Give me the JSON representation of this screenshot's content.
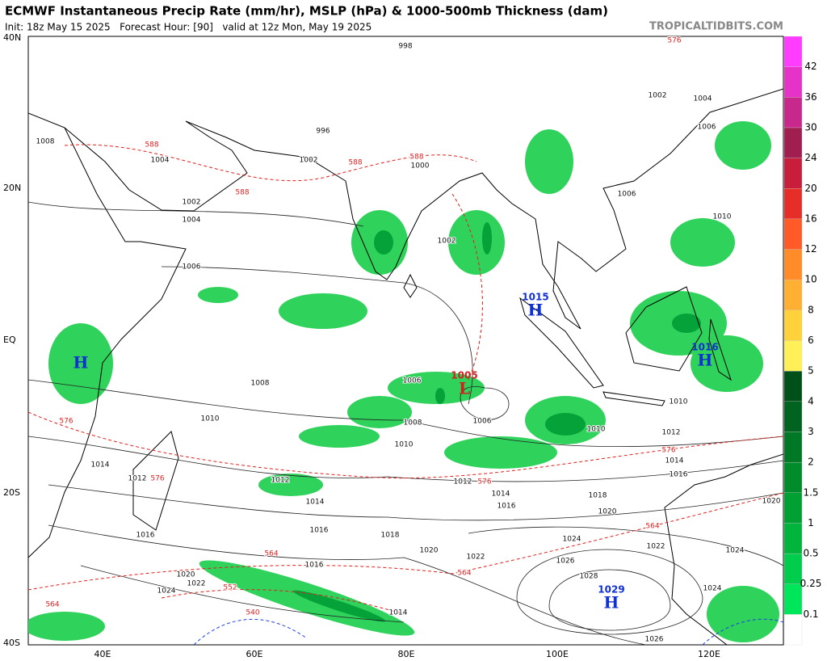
{
  "header": {
    "title": "ECMWF Instantaneous Precip Rate (mm/hr), MSLP (hPa) & 1000-500mb Thickness (dam)",
    "subtitle": "Init: 18z May 15 2025   Forecast Hour: [90]   valid at 12z Mon, May 19 2025",
    "source": "TROPICALTIDBITS.COM"
  },
  "map": {
    "lat_labels": [
      "40N",
      "20N",
      "EQ",
      "20S",
      "40S"
    ],
    "lon_labels": [
      "40E",
      "60E",
      "80E",
      "100E",
      "120E"
    ],
    "centers": [
      {
        "letter": "H",
        "value": "1015"
      },
      {
        "letter": "H",
        "value": "1016"
      },
      {
        "letter": "L",
        "value": "1005"
      },
      {
        "letter": "H",
        "value": "1029"
      },
      {
        "letter": "H"
      }
    ],
    "isobar_labels": [
      "1008",
      "1010",
      "1008",
      "1010",
      "1012",
      "1014",
      "1016",
      "1016",
      "1018",
      "1020",
      "1022",
      "1024",
      "1026",
      "1028",
      "1014",
      "1016",
      "1018",
      "1020",
      "1022",
      "1024",
      "1024",
      "1026",
      "1012",
      "1010",
      "1010",
      "1006",
      "1006",
      "1002",
      "1004",
      "1002",
      "1006",
      "1008",
      "1004",
      "1002",
      "1006",
      "1010",
      "1002",
      "1004",
      "1006",
      "1000",
      "998",
      "996",
      "1014",
      "1012",
      "1016",
      "1020",
      "1022",
      "1024",
      "1014",
      "1012",
      "1014",
      "1016",
      "1020"
    ],
    "thickness_labels": [
      "576",
      "576",
      "564",
      "564",
      "564",
      "552",
      "564",
      "576",
      "588",
      "588",
      "588",
      "588",
      "576",
      "576",
      "540"
    ]
  },
  "colorbar": {
    "ticks": [
      0.1,
      0.25,
      0.5,
      1,
      1.5,
      2,
      3,
      4,
      5,
      6,
      8,
      10,
      12,
      16,
      20,
      24,
      30,
      36,
      42
    ],
    "colors": [
      "#ffffff",
      "#00e65a",
      "#00cd4b",
      "#00b43c",
      "#00a032",
      "#008c2a",
      "#007826",
      "#006420",
      "#00501a",
      "#fff05a",
      "#ffd23c",
      "#ffaf32",
      "#ff8c28",
      "#ff5a28",
      "#e62d28",
      "#c81e3c",
      "#a01e50",
      "#c8288c",
      "#e632c8",
      "#ff3cff"
    ]
  }
}
